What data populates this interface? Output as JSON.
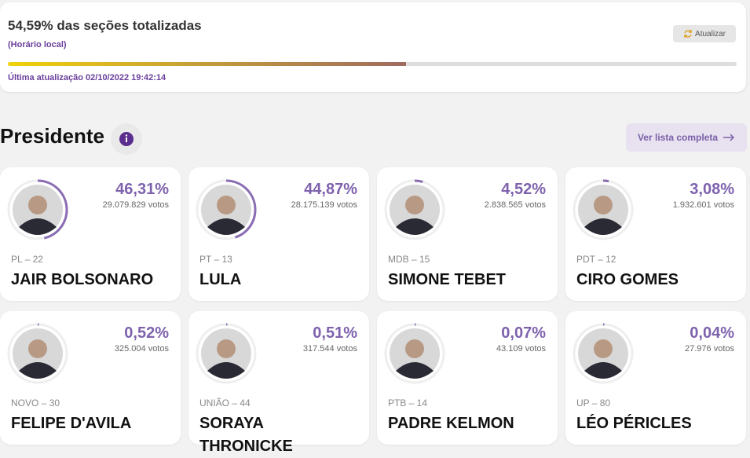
{
  "header": {
    "title": "54,59% das seções totalizadas",
    "subtitle": "(Horário local)",
    "button": "Atualizar",
    "last_update": "Última atualização 02/10/2022 19:42:14"
  },
  "section": {
    "title": "Presidente",
    "button": "Ver lista completa"
  },
  "candidates": [
    {
      "percent": "46,31%",
      "votes": "29.079.829 votos",
      "party": "PL – 22",
      "name": "JAIR BOLSONARO"
    },
    {
      "percent": "44,87%",
      "votes": "28.175.139 votos",
      "party": "PT – 13",
      "name": "LULA"
    },
    {
      "percent": "4,52%",
      "votes": "2.838.565 votos",
      "party": "MDB – 15",
      "name": "SIMONE TEBET"
    },
    {
      "percent": "3,08%",
      "votes": "1.932.601 votos",
      "party": "PDT – 12",
      "name": "CIRO GOMES"
    },
    {
      "percent": "0,52%",
      "votes": "325.004 votos",
      "party": "NOVO – 30",
      "name": "FELIPE D'AVILA"
    },
    {
      "percent": "0,51%",
      "votes": "317.544 votos",
      "party": "UNIÃO – 44",
      "name": "SORAYA THRONICKE"
    },
    {
      "percent": "0,07%",
      "votes": "43.109 votos",
      "party": "PTB – 14",
      "name": "PADRE KELMON"
    },
    {
      "percent": "0,04%",
      "votes": "27.976 votos",
      "party": "UP – 80",
      "name": "LÉO PÉRICLES"
    }
  ]
}
